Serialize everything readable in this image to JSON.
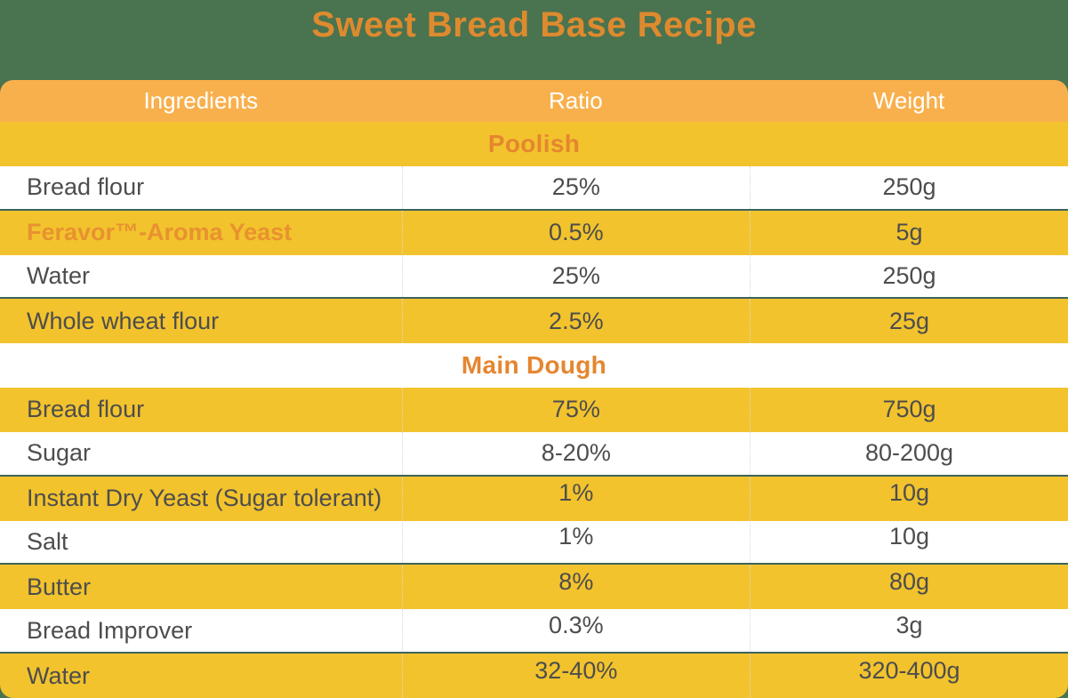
{
  "title": "Sweet Bread Base Recipe",
  "columns": {
    "ingredients": "Ingredients",
    "ratio": "Ratio",
    "weight": "Weight"
  },
  "colors": {
    "background_green": "#4A7350",
    "header_amber": "#F8B04D",
    "row_yellow": "#F2C32D",
    "row_white": "#FFFFFF",
    "accent_orange_title": "#DE8A2E",
    "accent_orange_section": "#E5862F",
    "brand_orange": "#E8922F",
    "text_dark": "#4D4D4D",
    "divider_dark_green": "#3E635A",
    "column_dotted_gray": "#D9D9D9"
  },
  "rows": [
    {
      "type": "section",
      "label": "Poolish"
    },
    {
      "type": "item",
      "ingredient": "Bread flour",
      "ratio": "25%",
      "weight": "250g"
    },
    {
      "type": "item",
      "ingredient": "Feravor™-Aroma Yeast",
      "ratio": "0.5%",
      "weight": "5g"
    },
    {
      "type": "item",
      "ingredient": "Water",
      "ratio": "25%",
      "weight": "250g"
    },
    {
      "type": "item",
      "ingredient": "Whole wheat flour",
      "ratio": "2.5%",
      "weight": "25g"
    },
    {
      "type": "section",
      "label": "Main Dough"
    },
    {
      "type": "item",
      "ingredient": "Bread flour",
      "ratio": "75%",
      "weight": "750g"
    },
    {
      "type": "item",
      "ingredient": "Sugar",
      "ratio": "8-20%",
      "weight": "80-200g"
    },
    {
      "type": "item",
      "ingredient": "Instant Dry Yeast (Sugar tolerant)",
      "ratio": "1%",
      "weight": "10g"
    },
    {
      "type": "item",
      "ingredient": "Salt",
      "ratio": "1%",
      "weight": "10g"
    },
    {
      "type": "item",
      "ingredient": "Butter",
      "ratio": "8%",
      "weight": "80g"
    },
    {
      "type": "item",
      "ingredient": "Bread Improver",
      "ratio": "0.3%",
      "weight": "3g"
    },
    {
      "type": "item",
      "ingredient": "Water",
      "ratio": "32-40%",
      "weight": "320-400g"
    }
  ]
}
